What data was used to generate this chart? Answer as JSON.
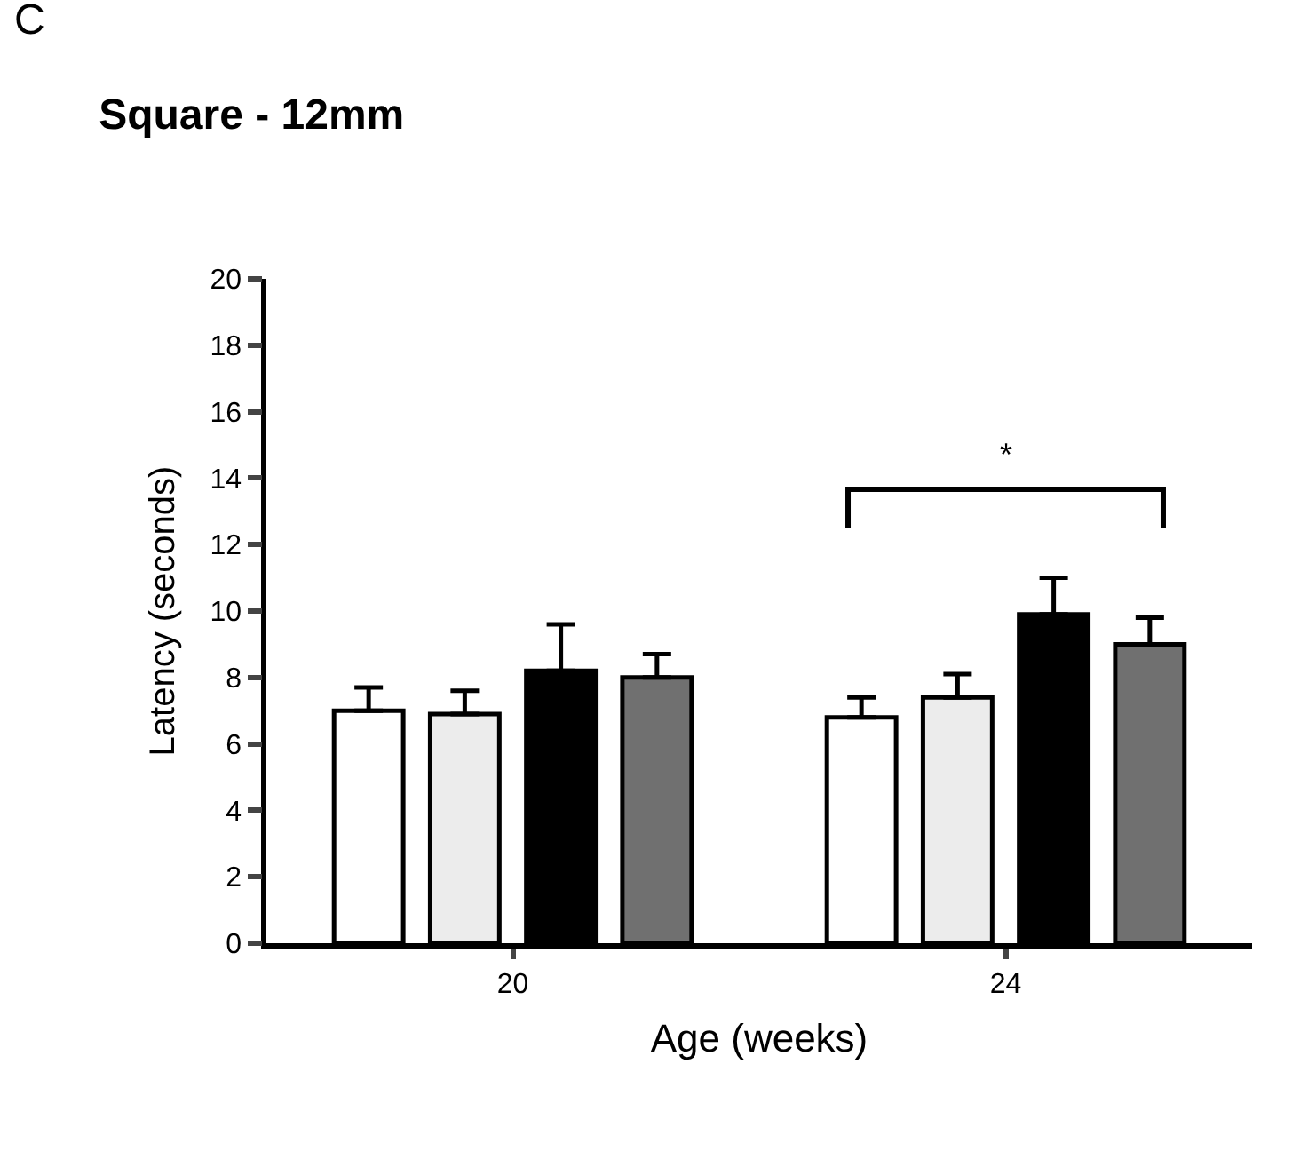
{
  "chart_data": {
    "type": "bar",
    "title": "Square - 12mm",
    "xlabel": "Age (weeks)",
    "ylabel": "Latency (seconds)",
    "categories": [
      "20",
      "24"
    ],
    "series": [
      {
        "color": "#ffffff",
        "values": [
          7.0,
          6.8
        ],
        "errors": [
          [
            7.0,
            7.7
          ],
          [
            6.8,
            7.4
          ]
        ]
      },
      {
        "color": "#ececec",
        "values": [
          6.9,
          7.4
        ],
        "errors": [
          [
            6.9,
            7.6
          ],
          [
            7.4,
            8.1
          ]
        ]
      },
      {
        "color": "#000000",
        "values": [
          8.2,
          9.9
        ],
        "errors": [
          [
            8.2,
            9.6
          ],
          [
            9.9,
            11.0
          ]
        ]
      },
      {
        "color": "#707070",
        "values": [
          8.0,
          9.0
        ],
        "errors": [
          [
            8.0,
            8.7
          ],
          [
            9.0,
            9.8
          ]
        ]
      }
    ],
    "ylim": [
      0,
      20
    ],
    "yticks": [
      0,
      2,
      4,
      6,
      8,
      10,
      12,
      14,
      16,
      18,
      20
    ],
    "annotations": [
      "C",
      "*"
    ]
  }
}
